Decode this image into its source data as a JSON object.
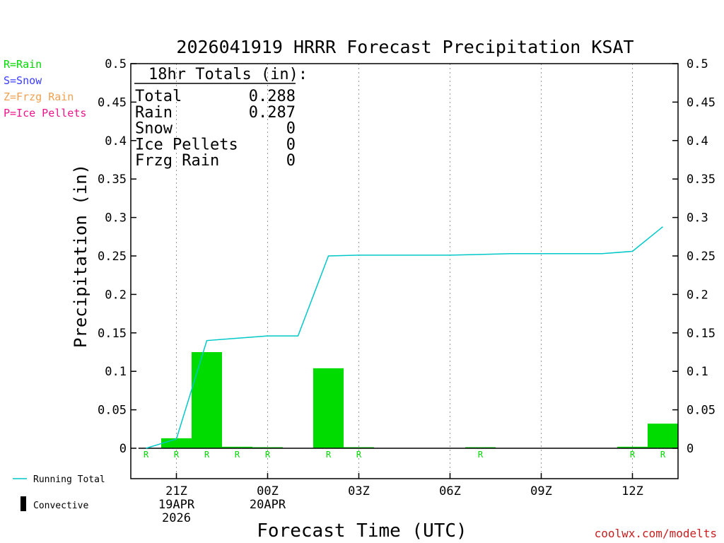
{
  "chart_data": {
    "type": "bar",
    "title": "2026041919 HRRR Forecast Precipitation KSAT",
    "ylabel": "Precipitation (in)",
    "xlabel": "Forecast Time (UTC)",
    "ylim": [
      -0.04,
      0.5
    ],
    "y_ticks": [
      0,
      0.05,
      0.1,
      0.15,
      0.2,
      0.25,
      0.3,
      0.35,
      0.4,
      0.45,
      0.5
    ],
    "y_tick_labels": [
      "0",
      "0.05",
      "0.1",
      "0.15",
      "0.2",
      "0.25",
      "0.3",
      "0.35",
      "0.4",
      "0.45",
      "0.5"
    ],
    "x_range_hours": [
      19.5,
      37.5
    ],
    "x_ticks": [
      {
        "hour": 21,
        "lines": [
          "21Z",
          "19APR",
          "2026"
        ]
      },
      {
        "hour": 24,
        "lines": [
          "00Z",
          "20APR"
        ]
      },
      {
        "hour": 27,
        "lines": [
          "03Z"
        ]
      },
      {
        "hour": 30,
        "lines": [
          "06Z"
        ]
      },
      {
        "hour": 33,
        "lines": [
          "09Z"
        ]
      },
      {
        "hour": 36,
        "lines": [
          "12Z"
        ]
      }
    ],
    "gridlines_hours": [
      21,
      24,
      27,
      30,
      33,
      36
    ],
    "series": [
      {
        "name": "Rain",
        "color": "#00dc00",
        "hours": [
          20,
          21,
          22,
          23,
          24,
          25,
          26,
          27,
          28,
          29,
          30,
          31,
          32,
          33,
          34,
          35,
          36,
          37
        ],
        "values": [
          0,
          0.013,
          0.125,
          0.002,
          0.001,
          0,
          0.104,
          0.0005,
          0,
          0,
          0,
          0.0005,
          0,
          0,
          0,
          0,
          0.002,
          0.032
        ],
        "precip_type": [
          "R",
          "R",
          "R",
          "R",
          "R",
          "",
          "R",
          "R",
          "",
          "",
          "",
          "R",
          "",
          "",
          "",
          "",
          "R",
          "R"
        ]
      },
      {
        "name": "Running Total",
        "color": "#00c8c8",
        "hours": [
          20,
          21,
          22,
          23,
          24,
          25,
          26,
          27,
          28,
          29,
          30,
          31,
          32,
          33,
          34,
          35,
          36,
          37
        ],
        "values": [
          0,
          0.012,
          0.14,
          0.143,
          0.146,
          0.146,
          0.25,
          0.251,
          0.251,
          0.251,
          0.251,
          0.252,
          0.253,
          0.253,
          0.253,
          0.253,
          0.256,
          0.288
        ]
      }
    ],
    "totals_box": {
      "heading": "18hr Totals (in):",
      "rows": [
        {
          "label": "Total",
          "value": "0.288"
        },
        {
          "label": "Rain",
          "value": "0.287"
        },
        {
          "label": "Snow",
          "value": "0"
        },
        {
          "label": "Ice Pellets",
          "value": "0"
        },
        {
          "label": "Frzg Rain",
          "value": "0"
        }
      ]
    },
    "type_legend": [
      {
        "text": "R=Rain",
        "color": "#00dc00"
      },
      {
        "text": "S=Snow",
        "color": "#3c3cff"
      },
      {
        "text": "Z=Frzg Rain",
        "color": "#f0a050"
      },
      {
        "text": "P=Ice Pellets",
        "color": "#f0148c"
      }
    ],
    "legend": {
      "running_total": "Running Total",
      "convective": "Convective"
    },
    "credit": "coolwx.com/modelts",
    "colors": {
      "bar": "#00dc00",
      "line": "#00c8c8",
      "credit": "#c81e1e",
      "convective": "#000000"
    }
  }
}
